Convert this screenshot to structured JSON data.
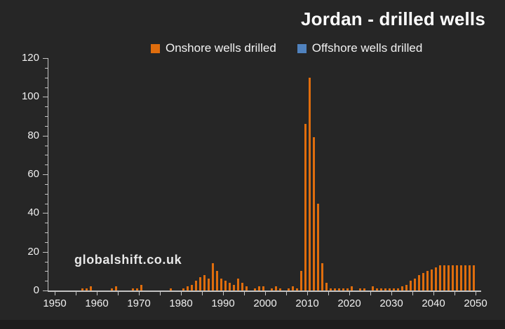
{
  "header": {
    "title": "Jordan - drilled wells"
  },
  "watermark": "globalshift.co.uk",
  "legend": {
    "items": [
      {
        "label": "Onshore wells drilled",
        "color": "#df6d0d"
      },
      {
        "label": "Offshore wells drilled",
        "color": "#5082be"
      }
    ]
  },
  "chart_data": {
    "type": "bar",
    "title": "Jordan - drilled wells",
    "xlabel": "",
    "ylabel": "",
    "x_range": [
      1950,
      2050
    ],
    "ylim": [
      0,
      120
    ],
    "y_major_step": 20,
    "y_minor_step": 5,
    "x_tick_step": 5,
    "x_label_step": 10,
    "grid": false,
    "legend_position": "top-center",
    "x_tick_labels": [
      1950,
      1960,
      1970,
      1980,
      1990,
      2000,
      2010,
      2020,
      2030,
      2040,
      2050
    ],
    "y_tick_labels": [
      0,
      20,
      40,
      60,
      80,
      100,
      120
    ],
    "series": [
      {
        "name": "Onshore wells drilled",
        "color": "#df6d0d",
        "values_by_year": {
          "1956": 1,
          "1957": 1,
          "1958": 2,
          "1963": 1,
          "1964": 2,
          "1968": 1,
          "1969": 1,
          "1970": 3,
          "1977": 1,
          "1980": 1,
          "1981": 2,
          "1982": 3,
          "1983": 5,
          "1984": 7,
          "1985": 8,
          "1986": 6,
          "1987": 14,
          "1988": 10,
          "1989": 6,
          "1990": 5,
          "1991": 4,
          "1992": 3,
          "1993": 6,
          "1994": 4,
          "1995": 2,
          "1997": 1,
          "1998": 2,
          "1999": 2,
          "2001": 1,
          "2002": 2,
          "2003": 1,
          "2005": 1,
          "2006": 2,
          "2007": 1,
          "2008": 10,
          "2009": 86,
          "2010": 110,
          "2011": 79,
          "2012": 45,
          "2013": 14,
          "2014": 4,
          "2015": 1,
          "2016": 1,
          "2017": 1,
          "2018": 1,
          "2019": 1,
          "2020": 2,
          "2022": 1,
          "2023": 1,
          "2025": 2,
          "2026": 1,
          "2027": 1,
          "2028": 1,
          "2029": 1,
          "2030": 1,
          "2031": 1,
          "2032": 2,
          "2033": 3,
          "2034": 5,
          "2035": 6,
          "2036": 8,
          "2037": 9,
          "2038": 10,
          "2039": 11,
          "2040": 12,
          "2041": 13,
          "2042": 13,
          "2043": 13,
          "2044": 13,
          "2045": 13,
          "2046": 13,
          "2047": 13,
          "2048": 13,
          "2049": 13
        }
      },
      {
        "name": "Offshore wells drilled",
        "color": "#5082be",
        "values_by_year": {}
      }
    ]
  }
}
